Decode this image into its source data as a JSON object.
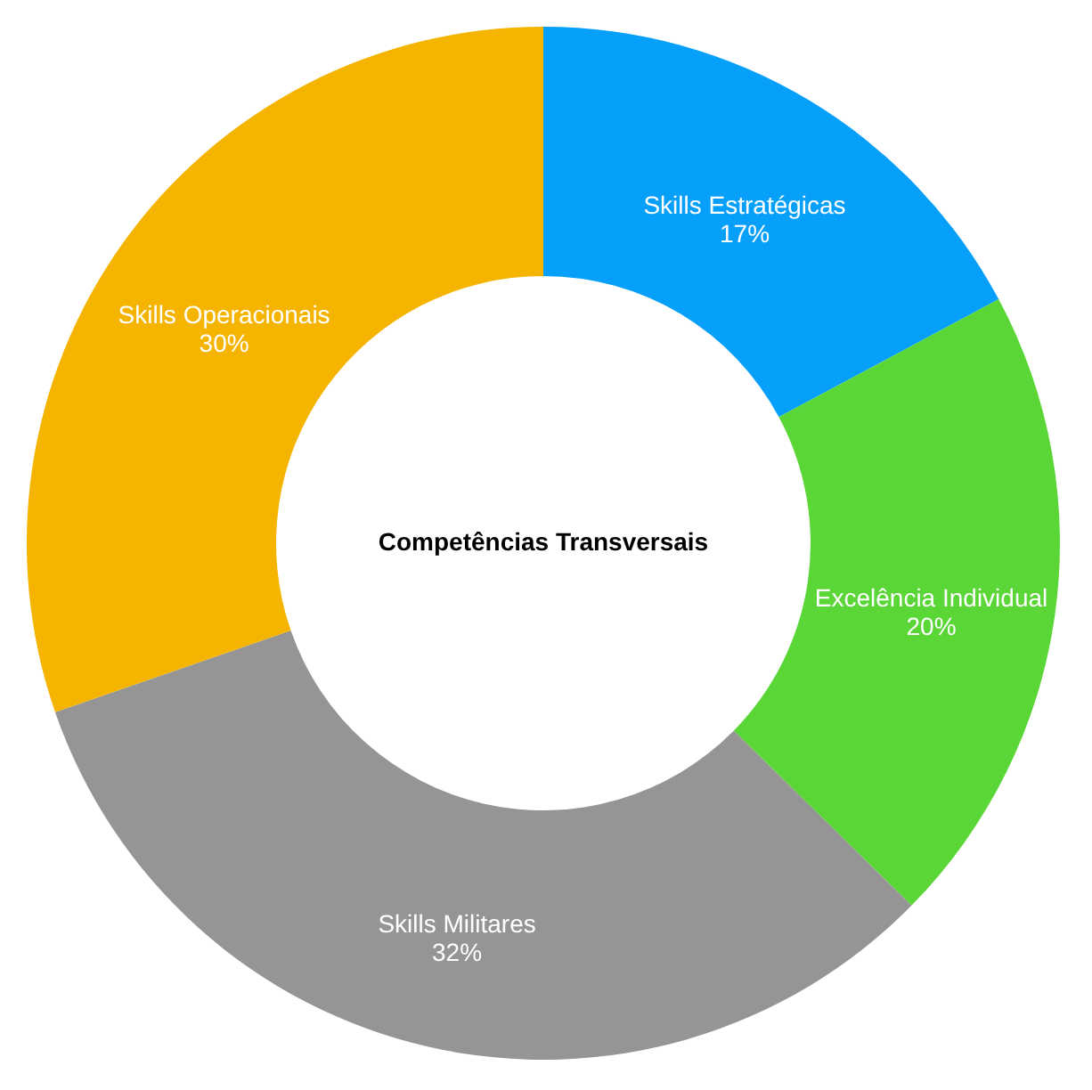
{
  "chart_data": {
    "type": "donut",
    "title": "Competências Transversais",
    "categories": [
      "Skills Estratégicas",
      "Excelência Individual",
      "Skills Militares",
      "Skills Operacionais"
    ],
    "values": [
      17,
      20,
      32,
      30
    ],
    "value_labels": [
      "17%",
      "20%",
      "32%",
      "30%"
    ],
    "colors": [
      "#069ff9",
      "#5ad637",
      "#959595",
      "#f4b400"
    ]
  }
}
